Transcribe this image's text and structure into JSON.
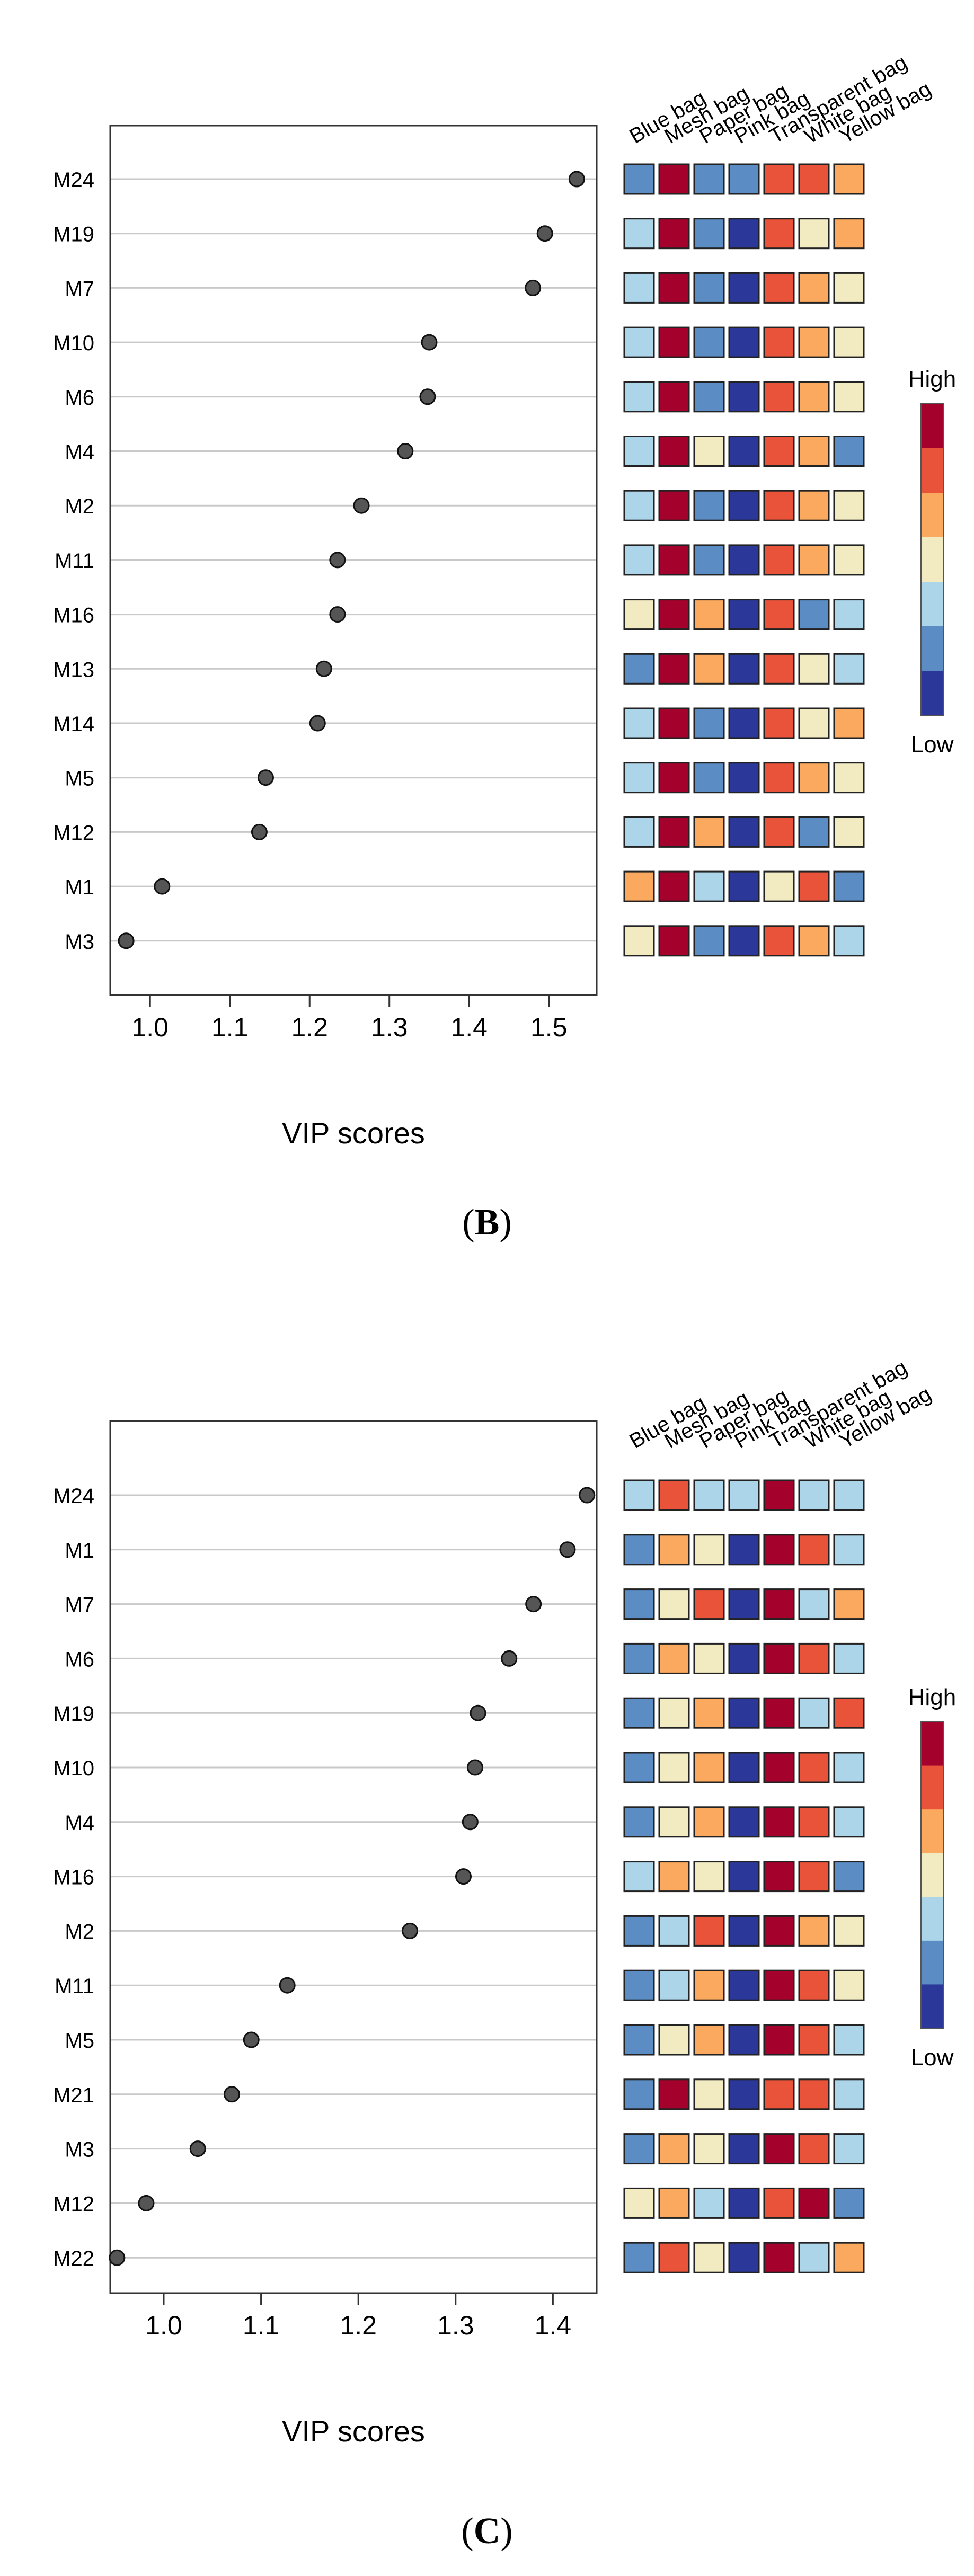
{
  "figure": {
    "panels": [
      {
        "label": "B",
        "caption_open": "(",
        "caption_close": ")"
      },
      {
        "label": "C",
        "caption_open": "(",
        "caption_close": ")"
      }
    ]
  },
  "colors": {
    "1": "#2b3899",
    "2": "#5b8cc4",
    "3": "#add5ea",
    "4": "#f2ebc2",
    "5": "#fba95e",
    "6": "#e8533a",
    "7": "#a4022c",
    "point_fill": "#555555",
    "grid": "#c9c9c9",
    "frame": "#333333"
  },
  "chart_data": [
    {
      "type": "scatter",
      "panel": "B",
      "xlabel": "VIP scores",
      "xlim": [
        0.95,
        1.56
      ],
      "xticks": [
        1.0,
        1.1,
        1.2,
        1.3,
        1.4,
        1.5
      ],
      "xtick_labels": [
        "1.0",
        "1.1",
        "1.2",
        "1.3",
        "1.4",
        "1.5"
      ],
      "metabolites": [
        "M24",
        "M19",
        "M7",
        "M10",
        "M6",
        "M4",
        "M2",
        "M11",
        "M16",
        "M13",
        "M14",
        "M5",
        "M12",
        "M1",
        "M3"
      ],
      "values": [
        1.535,
        1.495,
        1.48,
        1.35,
        1.348,
        1.32,
        1.265,
        1.235,
        1.235,
        1.218,
        1.21,
        1.145,
        1.137,
        1.015,
        0.97
      ],
      "heatmap": {
        "columns": [
          "Blue bag",
          "Mesh bag",
          "Paper bag",
          "Pink bag",
          "Transparent bag",
          "White bag",
          "Yellow bag"
        ],
        "levels": [
          [
            2,
            7,
            2,
            2,
            6,
            6,
            5
          ],
          [
            3,
            7,
            2,
            1,
            6,
            4,
            5
          ],
          [
            3,
            7,
            2,
            1,
            6,
            5,
            4
          ],
          [
            3,
            7,
            2,
            1,
            6,
            5,
            4
          ],
          [
            3,
            7,
            2,
            1,
            6,
            5,
            4
          ],
          [
            3,
            7,
            4,
            1,
            6,
            5,
            2
          ],
          [
            3,
            7,
            2,
            1,
            6,
            5,
            4
          ],
          [
            3,
            7,
            2,
            1,
            6,
            5,
            4
          ],
          [
            4,
            7,
            5,
            1,
            6,
            2,
            3
          ],
          [
            2,
            7,
            5,
            1,
            6,
            4,
            3
          ],
          [
            3,
            7,
            2,
            1,
            6,
            4,
            5
          ],
          [
            3,
            7,
            2,
            1,
            6,
            5,
            4
          ],
          [
            3,
            7,
            5,
            1,
            6,
            2,
            4
          ],
          [
            5,
            7,
            3,
            1,
            4,
            6,
            2
          ],
          [
            4,
            7,
            2,
            1,
            6,
            5,
            3
          ]
        ]
      },
      "colorbar": {
        "high_label": "High",
        "low_label": "Low"
      }
    },
    {
      "type": "scatter",
      "panel": "C",
      "xlabel": "VIP scores",
      "xlim": [
        0.945,
        1.445
      ],
      "xticks": [
        1.0,
        1.1,
        1.2,
        1.3,
        1.4
      ],
      "xtick_labels": [
        "1.0",
        "1.1",
        "1.2",
        "1.3",
        "1.4"
      ],
      "metabolites": [
        "M24",
        "M1",
        "M7",
        "M6",
        "M19",
        "M10",
        "M4",
        "M16",
        "M2",
        "M11",
        "M5",
        "M21",
        "M3",
        "M12",
        "M22"
      ],
      "values": [
        1.435,
        1.415,
        1.38,
        1.355,
        1.323,
        1.32,
        1.315,
        1.308,
        1.253,
        1.127,
        1.09,
        1.07,
        1.035,
        0.982,
        0.952
      ],
      "heatmap": {
        "columns": [
          "Blue bag",
          "Mesh bag",
          "Paper bag",
          "Pink bag",
          "Transparent bag",
          "White bag",
          "Yellow bag"
        ],
        "levels": [
          [
            3,
            6,
            3,
            3,
            7,
            3,
            3
          ],
          [
            2,
            5,
            4,
            1,
            7,
            6,
            3
          ],
          [
            2,
            4,
            6,
            1,
            7,
            3,
            5
          ],
          [
            2,
            5,
            4,
            1,
            7,
            6,
            3
          ],
          [
            2,
            4,
            5,
            1,
            7,
            3,
            6
          ],
          [
            2,
            4,
            5,
            1,
            7,
            6,
            3
          ],
          [
            2,
            4,
            5,
            1,
            7,
            6,
            3
          ],
          [
            3,
            5,
            4,
            1,
            7,
            6,
            2
          ],
          [
            2,
            3,
            6,
            1,
            7,
            5,
            4
          ],
          [
            2,
            3,
            5,
            1,
            7,
            6,
            4
          ],
          [
            2,
            4,
            5,
            1,
            7,
            6,
            3
          ],
          [
            2,
            7,
            4,
            1,
            6,
            6,
            3
          ],
          [
            2,
            5,
            4,
            1,
            7,
            6,
            3
          ],
          [
            4,
            5,
            3,
            1,
            6,
            7,
            2
          ],
          [
            2,
            6,
            4,
            1,
            7,
            3,
            5
          ]
        ]
      },
      "colorbar": {
        "high_label": "High",
        "low_label": "Low"
      }
    }
  ]
}
